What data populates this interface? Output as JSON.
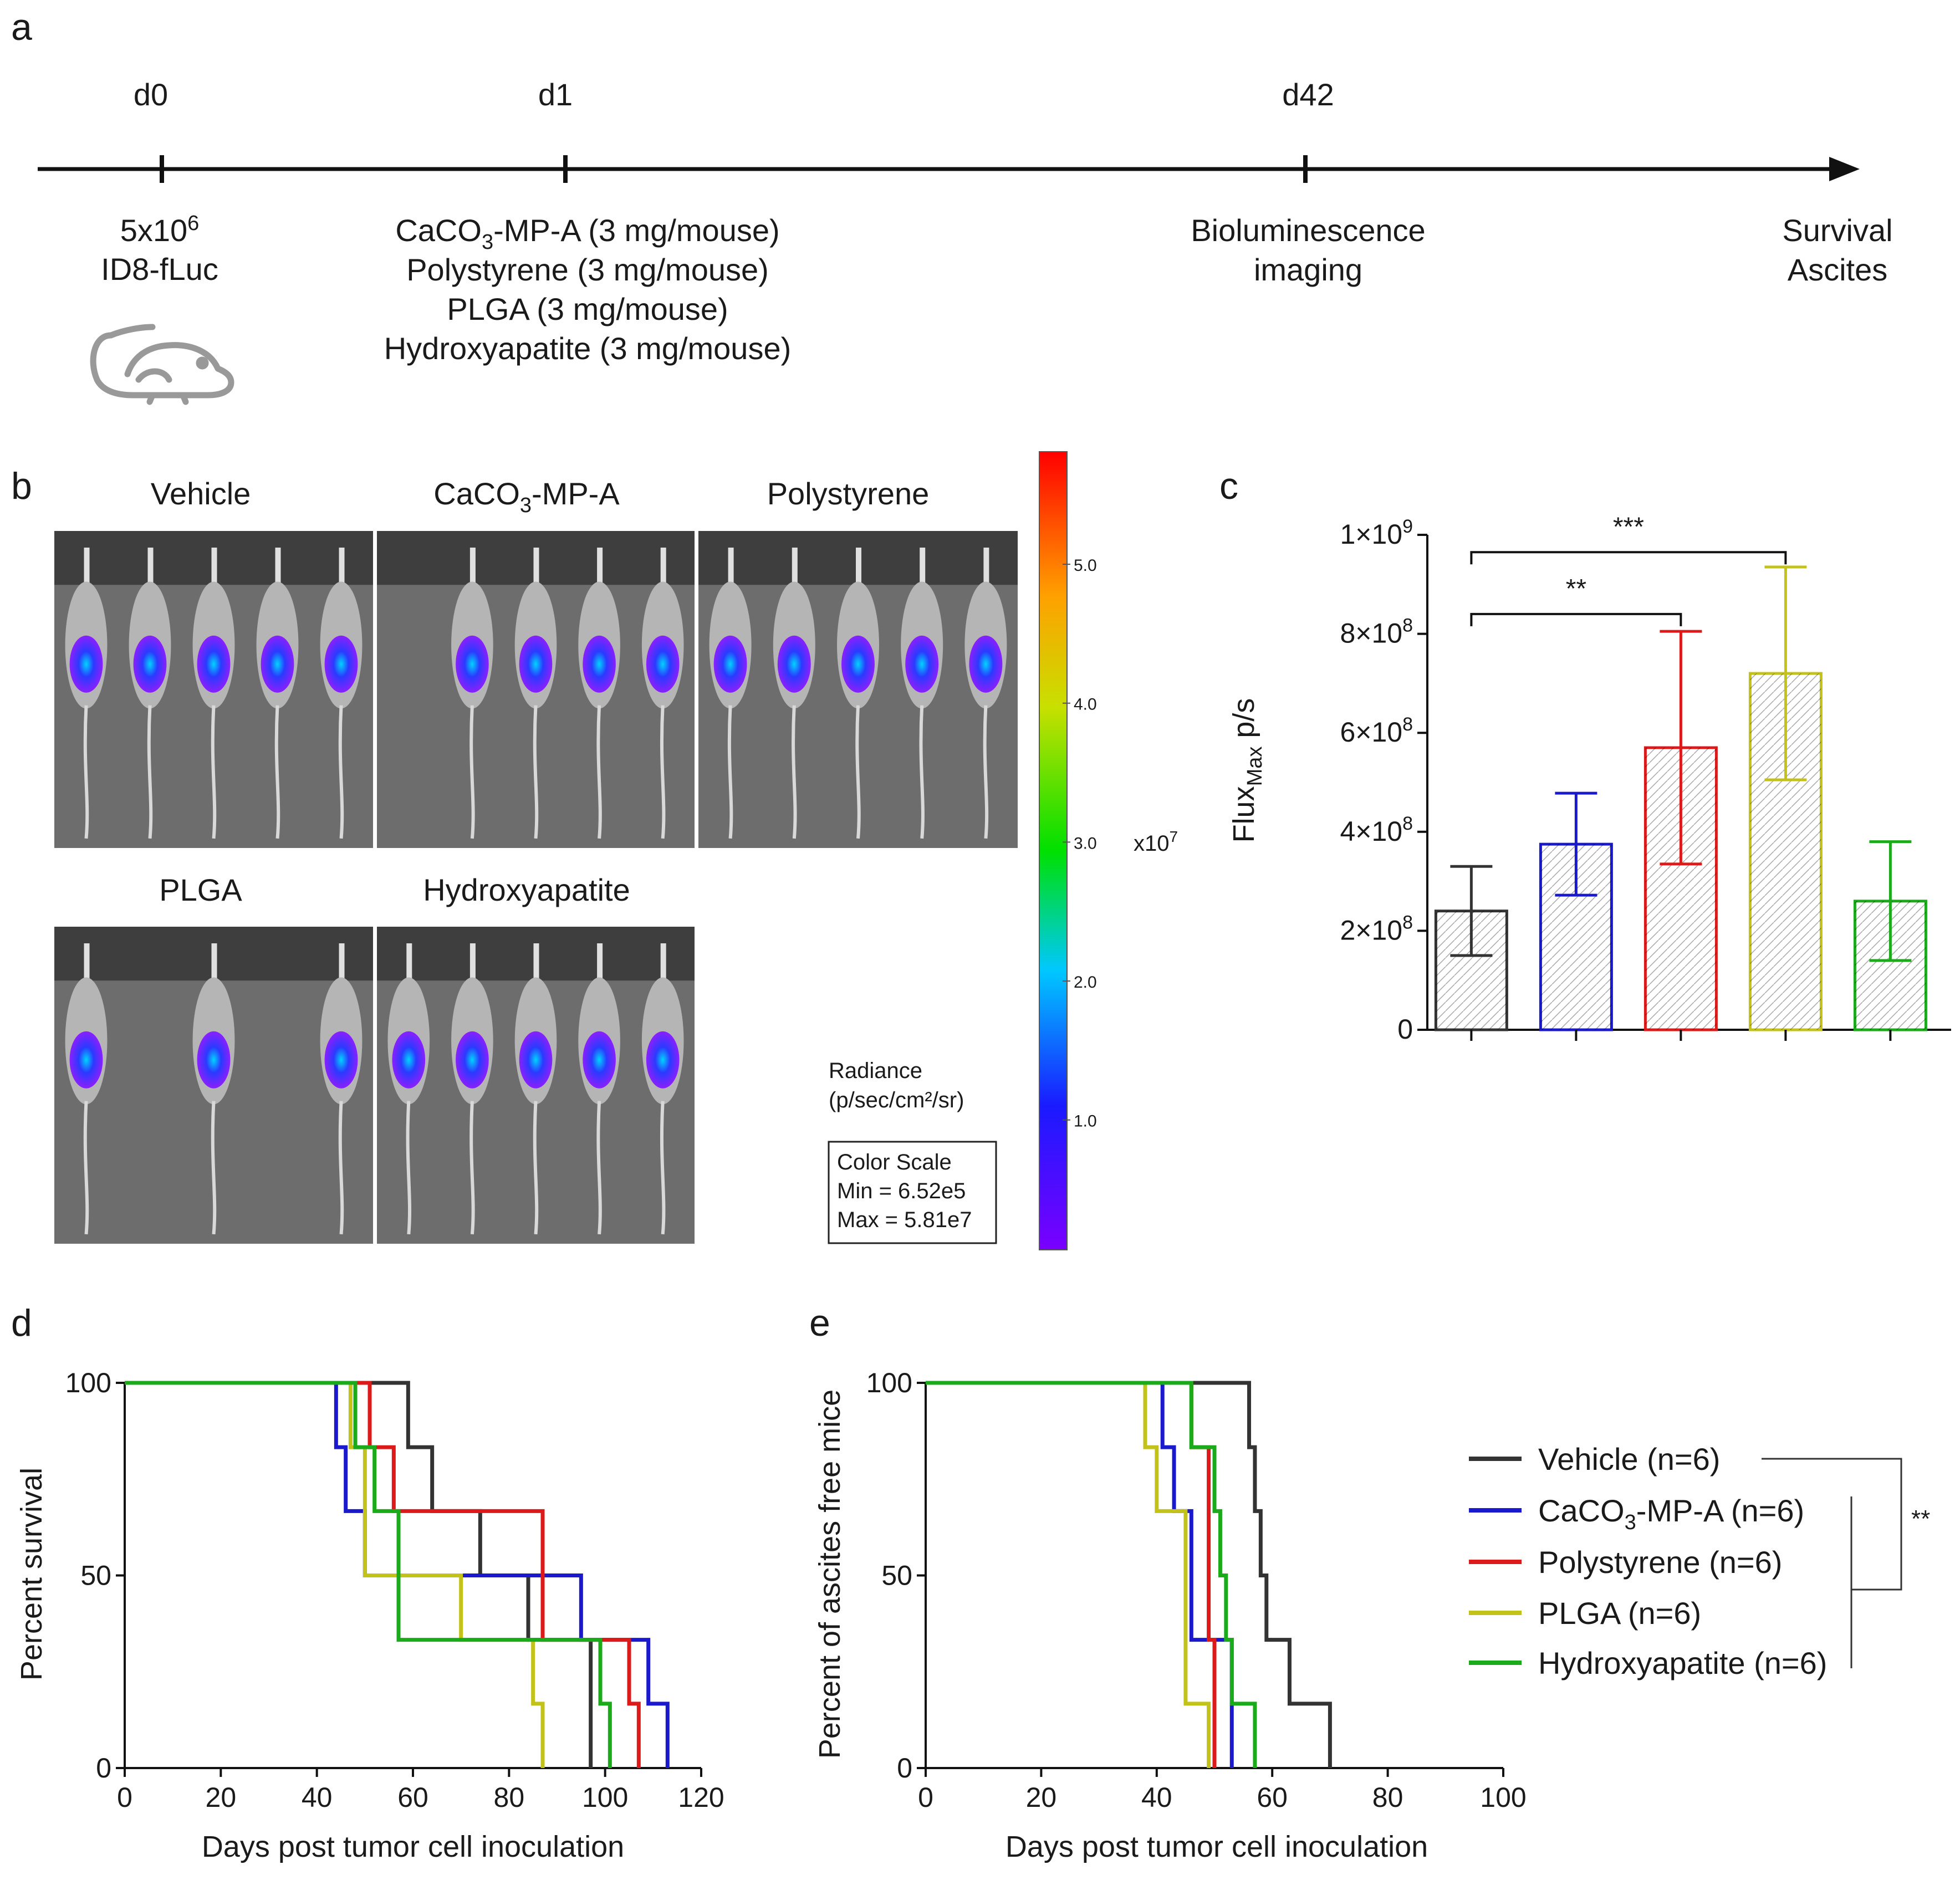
{
  "panel_a": {
    "letter": "a",
    "timepoints": [
      {
        "label": "d0",
        "lines": [
          "ID8-fLuc"
        ],
        "top_base": "5x10",
        "top_sup": "6"
      },
      {
        "label": "d1",
        "lines": [
          "Polystyrene (3 mg/mouse)",
          "PLGA (3 mg/mouse)",
          "Hydroxyapatite (3 mg/mouse)"
        ],
        "first_pre": "CaCO",
        "first_sub": "3",
        "first_post": "-MP-A (3 mg/mouse)"
      },
      {
        "label": "d42",
        "lines": [
          "Bioluminescence",
          "imaging"
        ]
      },
      {
        "label": "",
        "lines": [
          "Survival",
          "Ascites"
        ]
      }
    ],
    "icon": "mouse-icon"
  },
  "panel_b": {
    "letter": "b",
    "groups": [
      {
        "name": "Vehicle",
        "mice": 5
      },
      {
        "name_pre": "CaCO",
        "name_sub": "3",
        "name_post": "-MP-A",
        "mice": 4
      },
      {
        "name": "Polystyrene",
        "mice": 5
      },
      {
        "name": "PLGA",
        "mice": 3
      },
      {
        "name": "Hydroxyapatite",
        "mice": 5
      }
    ],
    "scale": {
      "ticks": [
        "5.0",
        "4.0",
        "3.0",
        "2.0",
        "1.0"
      ],
      "tick_values": [
        5.0,
        4.0,
        3.0,
        2.0,
        1.0
      ],
      "range": [
        0.0652,
        5.81
      ],
      "multiplier_base": "x10",
      "multiplier_sup": "7",
      "radiance_label": "Radiance",
      "radiance_unit": "(p/sec/cm²/sr)",
      "box_title": "Color Scale",
      "box_min": "Min = 6.52e5",
      "box_max": "Max = 5.81e7"
    }
  },
  "chart_data": [
    {
      "panel": "c",
      "type": "bar",
      "title": "",
      "ylabel_base": "Flux",
      "ylabel_sub": "Max",
      "ylabel_post": " p/s",
      "ylim": [
        0,
        1000000000
      ],
      "ytick_labels": [
        "0",
        "2×10",
        "4×10",
        "6×10",
        "8×10",
        "1×10"
      ],
      "ytick_sups": [
        "",
        "8",
        "8",
        "8",
        "8",
        "9"
      ],
      "ytick_values": [
        0,
        200000000,
        400000000,
        600000000,
        800000000,
        1000000000
      ],
      "categories": [
        "Vehicle",
        "CaCO3-MP-A",
        "Polystyrene",
        "PLGA",
        "Hydroxyapatite"
      ],
      "values": [
        240000000,
        375000000,
        570000000,
        720000000,
        260000000
      ],
      "errors": [
        90000000,
        103000000,
        235000000,
        215000000,
        120000000
      ],
      "colors": [
        "#333333",
        "#1a1acc",
        "#dd1a1a",
        "#c2c21a",
        "#1aaa1a"
      ],
      "significance": [
        {
          "from": 0,
          "to": 2,
          "label": "**",
          "y": 840000000
        },
        {
          "from": 0,
          "to": 3,
          "label": "***",
          "y": 965000000
        }
      ]
    },
    {
      "panel": "d",
      "type": "line",
      "step": true,
      "xlabel": "Days post tumor cell inoculation",
      "ylabel": "Percent survival",
      "xlim": [
        0,
        120
      ],
      "ylim": [
        0,
        100
      ],
      "xticks": [
        0,
        20,
        40,
        60,
        80,
        100,
        120
      ],
      "yticks": [
        0,
        50,
        100
      ],
      "series": [
        {
          "name": "Vehicle",
          "color": "#333333",
          "x": [
            0,
            59,
            64,
            74,
            84,
            97
          ],
          "y": [
            100,
            83.3,
            66.7,
            50,
            33.3,
            0
          ]
        },
        {
          "name": "CaCO3-MP-A",
          "color": "#1a1acc",
          "x": [
            0,
            44,
            46,
            50,
            95,
            109,
            113
          ],
          "y": [
            100,
            83.3,
            66.7,
            50,
            33.3,
            16.7,
            0
          ]
        },
        {
          "name": "Polystyrene",
          "color": "#dd1a1a",
          "x": [
            0,
            51,
            56,
            87,
            105,
            107
          ],
          "y": [
            100,
            83.3,
            66.7,
            33.3,
            16.7,
            0
          ]
        },
        {
          "name": "PLGA",
          "color": "#c2c21a",
          "x": [
            0,
            47,
            50,
            70,
            85,
            87
          ],
          "y": [
            100,
            83.3,
            50,
            33.3,
            16.7,
            0
          ]
        },
        {
          "name": "Hydroxyapatite",
          "color": "#1aaa1a",
          "x": [
            0,
            48,
            52,
            57,
            99,
            101
          ],
          "y": [
            100,
            83.3,
            66.7,
            33.3,
            16.7,
            0
          ]
        }
      ]
    },
    {
      "panel": "e",
      "type": "line",
      "step": true,
      "xlabel": "Days post tumor cell inoculation",
      "ylabel": "Percent of ascites free mice",
      "xlim": [
        0,
        100
      ],
      "ylim": [
        0,
        100
      ],
      "xticks": [
        0,
        20,
        40,
        60,
        80,
        100
      ],
      "yticks": [
        0,
        50,
        100
      ],
      "series": [
        {
          "name": "Vehicle",
          "color": "#333333",
          "x": [
            0,
            56,
            57,
            58,
            59,
            60,
            63,
            70
          ],
          "y": [
            100,
            83.3,
            66.7,
            50,
            33.3,
            33.3,
            16.7,
            0
          ]
        },
        {
          "name": "CaCO3-MP-A",
          "color": "#1a1acc",
          "x": [
            0,
            41,
            43,
            46,
            53
          ],
          "y": [
            100,
            83.3,
            66.7,
            33.3,
            0
          ]
        },
        {
          "name": "Polystyrene",
          "color": "#dd1a1a",
          "x": [
            0,
            46,
            49,
            50
          ],
          "y": [
            100,
            83.3,
            33.3,
            0
          ]
        },
        {
          "name": "PLGA",
          "color": "#c2c21a",
          "x": [
            0,
            38,
            40,
            45,
            49
          ],
          "y": [
            100,
            83.3,
            66.7,
            16.7,
            0
          ]
        },
        {
          "name": "Hydroxyapatite",
          "color": "#1aaa1a",
          "x": [
            0,
            46,
            50,
            51,
            52,
            53,
            57
          ],
          "y": [
            100,
            83.3,
            66.7,
            50,
            33.3,
            16.7,
            0
          ]
        }
      ]
    }
  ],
  "legend": {
    "entries": [
      {
        "text": "Vehicle (n=6)",
        "color": "#333333"
      },
      {
        "pre": "CaCO",
        "sub": "3",
        "post": "-MP-A (n=6)",
        "color": "#1a1acc"
      },
      {
        "text": "Polystyrene (n=6)",
        "color": "#dd1a1a"
      },
      {
        "text": "PLGA (n=6)",
        "color": "#c2c21a"
      },
      {
        "text": "Hydroxyapatite (n=6)",
        "color": "#1aaa1a"
      }
    ],
    "significance": "**"
  },
  "panel_letters": {
    "c": "c",
    "d": "d",
    "e": "e"
  }
}
